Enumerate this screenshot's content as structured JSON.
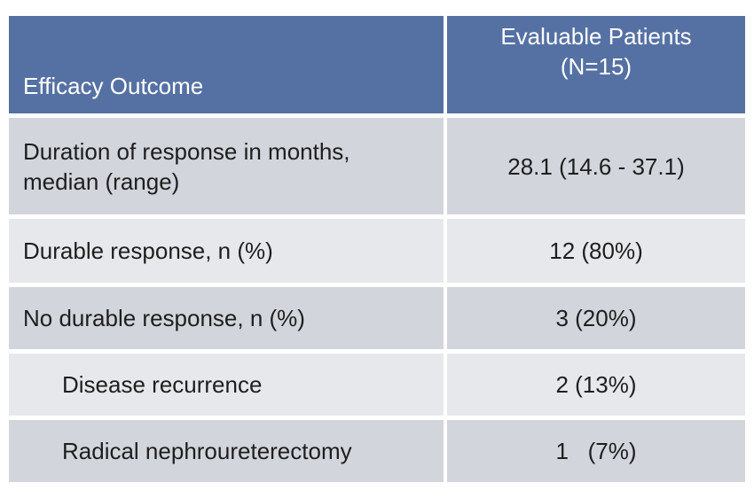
{
  "table": {
    "header": [
      [
        "Efficacy Outcome"
      ],
      [
        "Evaluable Patients",
        "(N=15)"
      ]
    ],
    "rows": [
      [
        [
          "Duration of response in months,",
          "median (range)"
        ],
        [
          "28.1 (14.6 - 37.1)"
        ]
      ],
      [
        [
          "Durable response, n (%)"
        ],
        [
          "12 (80%)"
        ]
      ],
      [
        [
          "No durable response, n (%)"
        ],
        [
          "3 (20%)"
        ]
      ],
      [
        [
          "Disease recurrence"
        ],
        [
          "2 (13%)"
        ]
      ],
      [
        [
          "Radical nephroureterectomy"
        ],
        [
          "1   (7%)"
        ]
      ]
    ]
  }
}
